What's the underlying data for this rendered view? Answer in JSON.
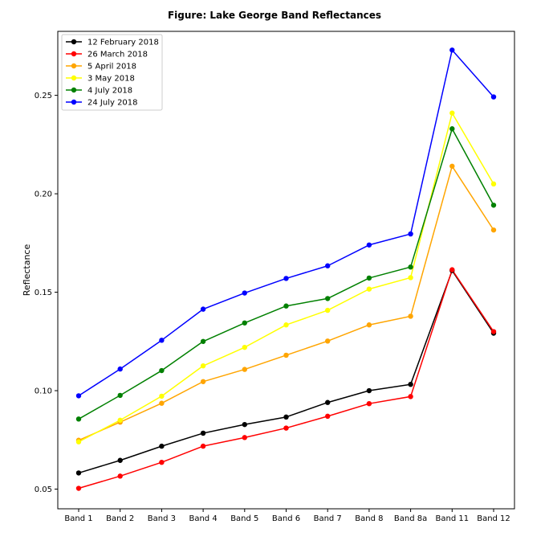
{
  "chart_data": {
    "type": "line",
    "title": "Figure: Lake George Band Reflectances",
    "xlabel": "",
    "ylabel": "Reflectance",
    "categories": [
      "Band 1",
      "Band 2",
      "Band 3",
      "Band 4",
      "Band 5",
      "Band 6",
      "Band 7",
      "Band 8",
      "Band 8a",
      "Band 11",
      "Band 12"
    ],
    "ylim": [
      0.04,
      0.2825
    ],
    "yticks": [
      0.05,
      0.1,
      0.15,
      0.2,
      0.25
    ],
    "ytick_labels": [
      "0.05",
      "0.10",
      "0.15",
      "0.20",
      "0.25"
    ],
    "grid": false,
    "legend_position": "top-left",
    "marker": "circle",
    "series": [
      {
        "name": "12 February 2018",
        "color": "#000000",
        "values": [
          0.0582,
          0.0646,
          0.0718,
          0.0784,
          0.0828,
          0.0866,
          0.094,
          0.1,
          0.1032,
          0.161,
          0.1292
        ]
      },
      {
        "name": "26 March 2018",
        "color": "#ff0000",
        "values": [
          0.0504,
          0.0566,
          0.0636,
          0.0718,
          0.0762,
          0.081,
          0.087,
          0.0934,
          0.097,
          0.1614,
          0.13
        ]
      },
      {
        "name": "5 April 2018",
        "color": "#ffa500",
        "values": [
          0.0748,
          0.084,
          0.0936,
          0.1046,
          0.1108,
          0.118,
          0.1252,
          0.1334,
          0.1378,
          0.214,
          0.1816
        ]
      },
      {
        "name": "3 May 2018",
        "color": "#ffff00",
        "values": [
          0.074,
          0.085,
          0.0972,
          0.1126,
          0.122,
          0.1334,
          0.1408,
          0.1516,
          0.1574,
          0.241,
          0.205
        ]
      },
      {
        "name": "4 July 2018",
        "color": "#008000",
        "values": [
          0.0856,
          0.0976,
          0.1102,
          0.125,
          0.1344,
          0.143,
          0.1468,
          0.1572,
          0.1628,
          0.233,
          0.1942
        ]
      },
      {
        "name": "24 July 2018",
        "color": "#0000ff",
        "values": [
          0.0974,
          0.111,
          0.1256,
          0.1414,
          0.1496,
          0.157,
          0.1634,
          0.174,
          0.1796,
          0.273,
          0.2492
        ]
      }
    ]
  }
}
